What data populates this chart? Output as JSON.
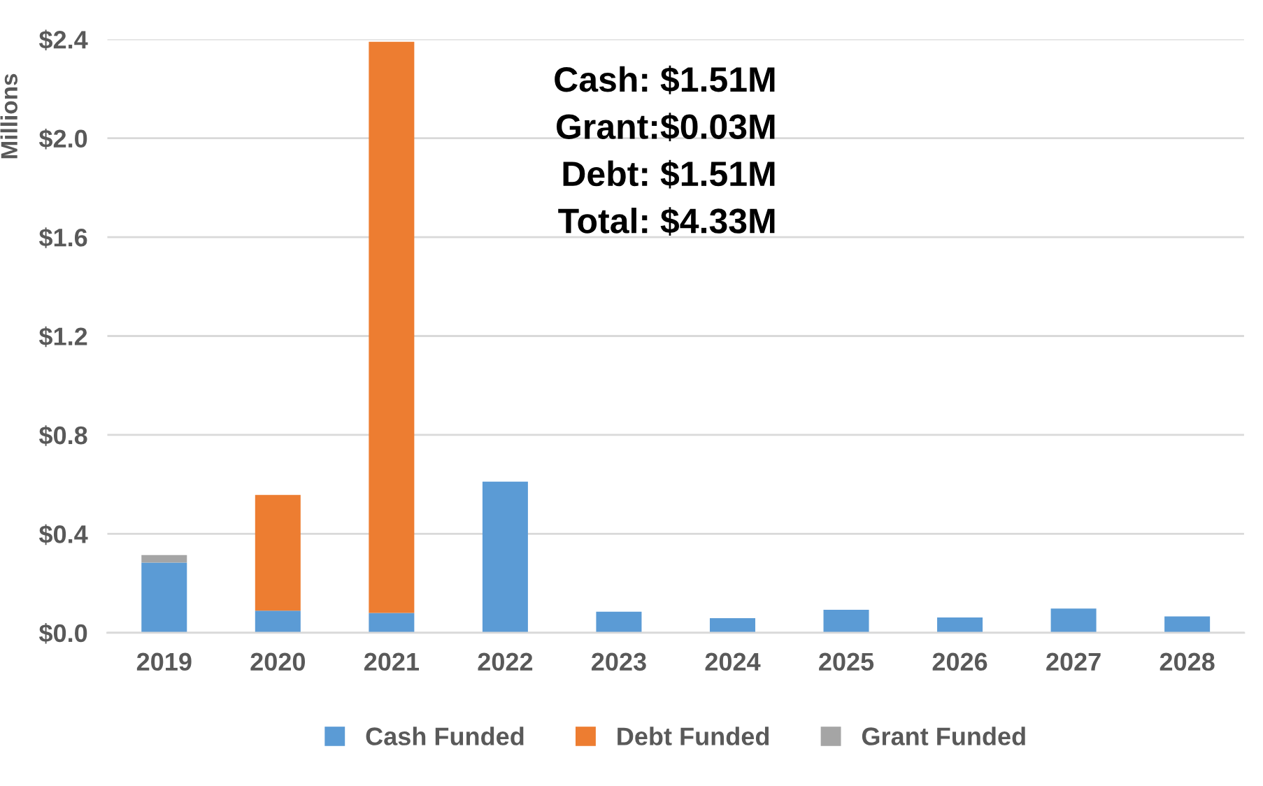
{
  "chart_data": {
    "type": "bar",
    "stacked": true,
    "ylabel": "Millions",
    "categories": [
      "2019",
      "2020",
      "2021",
      "2022",
      "2023",
      "2024",
      "2025",
      "2026",
      "2027",
      "2028"
    ],
    "series": [
      {
        "name": "Cash Funded",
        "color": "#5b9bd5",
        "values": [
          0.284,
          0.089,
          0.08,
          0.611,
          0.085,
          0.059,
          0.093,
          0.062,
          0.098,
          0.066
        ]
      },
      {
        "name": "Debt Funded",
        "color": "#ed7d31",
        "values": [
          null,
          0.468,
          2.31,
          null,
          null,
          null,
          null,
          null,
          null,
          null
        ]
      },
      {
        "name": "Grant Funded",
        "color": "#a5a5a5",
        "values": [
          0.03,
          null,
          null,
          null,
          null,
          null,
          null,
          null,
          null,
          null
        ]
      }
    ],
    "ylim": [
      0,
      2.4
    ],
    "yticks": [
      {
        "value": 0,
        "label": "$0.0"
      },
      {
        "value": 0.4,
        "label": "$0.4"
      },
      {
        "value": 0.8,
        "label": "$0.8"
      },
      {
        "value": 1.2,
        "label": "$1.2"
      },
      {
        "value": 1.6,
        "label": "$1.6"
      },
      {
        "value": 2.0,
        "label": "$2.0"
      },
      {
        "value": 2.4,
        "label": "$2.4"
      }
    ],
    "grid": "y",
    "legend": "bottom",
    "annotations": [
      "Cash: $1.51M",
      "Grant:$0.03M",
      "Debt: $1.51M",
      "Total: $4.33M"
    ]
  }
}
